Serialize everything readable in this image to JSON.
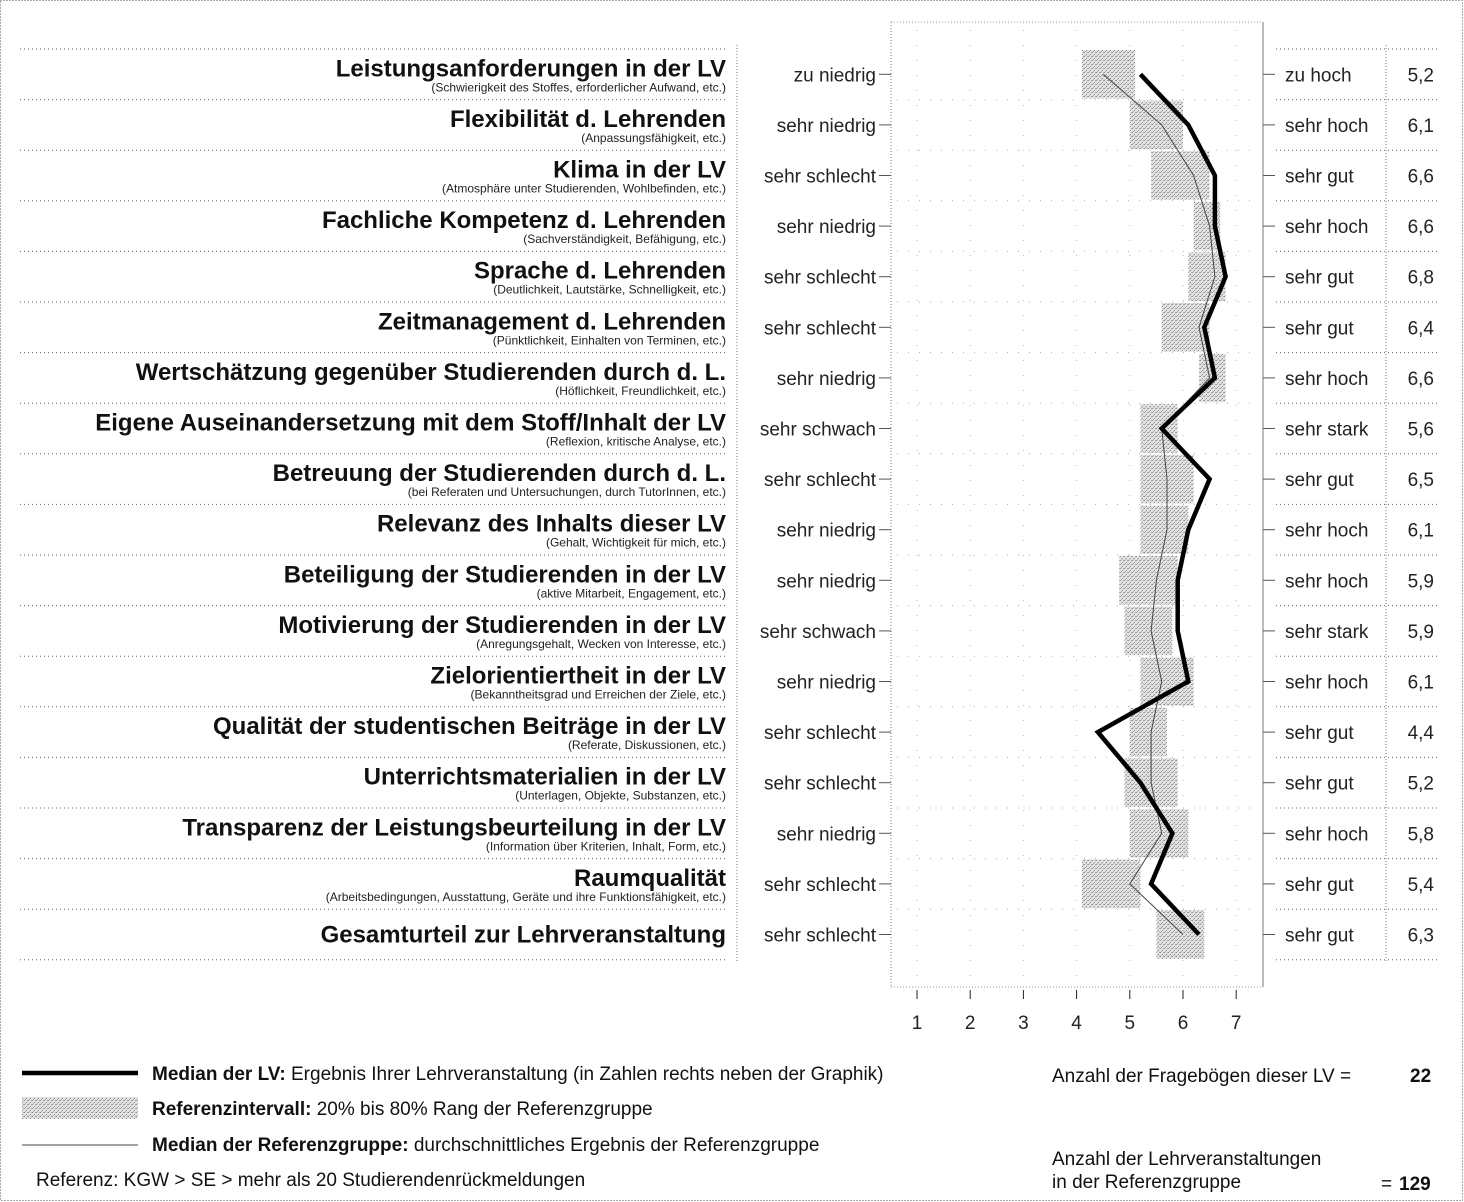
{
  "chart_data": {
    "type": "line",
    "orientation": "horizontal",
    "x_ticks": [
      1,
      2,
      3,
      4,
      5,
      6,
      7
    ],
    "xlim": [
      0.5,
      7.5
    ],
    "items": [
      {
        "title": "Leistungsanforderungen in der LV",
        "subtitle": "(Schwierigkeit des Stoffes, erforderlicher Aufwand, etc.)",
        "left_anchor": "zu niedrig",
        "right_anchor": "zu hoch",
        "median": 5.2,
        "median_label": "5,2",
        "ref_low": 4.1,
        "ref_high": 5.1,
        "ref_median": 4.5
      },
      {
        "title": "Flexibilität d. Lehrenden",
        "subtitle": "(Anpassungsfähigkeit, etc.)",
        "left_anchor": "sehr niedrig",
        "right_anchor": "sehr hoch",
        "median": 6.1,
        "median_label": "6,1",
        "ref_low": 5.0,
        "ref_high": 6.0,
        "ref_median": 5.6
      },
      {
        "title": "Klima in der LV",
        "subtitle": "(Atmosphäre unter Studierenden, Wohlbefinden, etc.)",
        "left_anchor": "sehr schlecht",
        "right_anchor": "sehr gut",
        "median": 6.6,
        "median_label": "6,6",
        "ref_low": 5.4,
        "ref_high": 6.5,
        "ref_median": 6.2
      },
      {
        "title": "Fachliche Kompetenz d. Lehrenden",
        "subtitle": "(Sachverständigkeit, Befähigung, etc.)",
        "left_anchor": "sehr niedrig",
        "right_anchor": "sehr hoch",
        "median": 6.6,
        "median_label": "6,6",
        "ref_low": 6.2,
        "ref_high": 6.7,
        "ref_median": 6.5
      },
      {
        "title": "Sprache d. Lehrenden",
        "subtitle": "(Deutlichkeit, Lautstärke, Schnelligkeit, etc.)",
        "left_anchor": "sehr schlecht",
        "right_anchor": "sehr gut",
        "median": 6.8,
        "median_label": "6,8",
        "ref_low": 6.1,
        "ref_high": 6.8,
        "ref_median": 6.6
      },
      {
        "title": "Zeitmanagement d. Lehrenden",
        "subtitle": "(Pünktlichkeit, Einhalten von Terminen, etc.)",
        "left_anchor": "sehr schlecht",
        "right_anchor": "sehr gut",
        "median": 6.4,
        "median_label": "6,4",
        "ref_low": 5.6,
        "ref_high": 6.5,
        "ref_median": 6.3
      },
      {
        "title": "Wertschätzung gegenüber Studierenden durch d. L.",
        "subtitle": "(Höflichkeit, Freundlichkeit, etc.)",
        "left_anchor": "sehr niedrig",
        "right_anchor": "sehr hoch",
        "median": 6.6,
        "median_label": "6,6",
        "ref_low": 6.3,
        "ref_high": 6.8,
        "ref_median": 6.5
      },
      {
        "title": "Eigene Auseinandersetzung mit dem Stoff/Inhalt der LV",
        "subtitle": "(Reflexion, kritische Analyse, etc.)",
        "left_anchor": "sehr schwach",
        "right_anchor": "sehr stark",
        "median": 5.6,
        "median_label": "5,6",
        "ref_low": 5.2,
        "ref_high": 5.9,
        "ref_median": 5.6
      },
      {
        "title": "Betreuung der Studierenden durch d. L.",
        "subtitle": "(bei Referaten und Untersuchungen, durch TutorInnen, etc.)",
        "left_anchor": "sehr schlecht",
        "right_anchor": "sehr gut",
        "median": 6.5,
        "median_label": "6,5",
        "ref_low": 5.2,
        "ref_high": 6.2,
        "ref_median": 5.7
      },
      {
        "title": "Relevanz des Inhalts dieser LV",
        "subtitle": "(Gehalt, Wichtigkeit für mich, etc.)",
        "left_anchor": "sehr niedrig",
        "right_anchor": "sehr hoch",
        "median": 6.1,
        "median_label": "6,1",
        "ref_low": 5.2,
        "ref_high": 6.1,
        "ref_median": 5.7
      },
      {
        "title": "Beteiligung der Studierenden in der LV",
        "subtitle": "(aktive Mitarbeit, Engagement, etc.)",
        "left_anchor": "sehr niedrig",
        "right_anchor": "sehr hoch",
        "median": 5.9,
        "median_label": "5,9",
        "ref_low": 4.8,
        "ref_high": 5.9,
        "ref_median": 5.5
      },
      {
        "title": "Motivierung der Studierenden in der LV",
        "subtitle": "(Anregungsgehalt, Wecken von Interesse, etc.)",
        "left_anchor": "sehr schwach",
        "right_anchor": "sehr stark",
        "median": 5.9,
        "median_label": "5,9",
        "ref_low": 4.9,
        "ref_high": 5.8,
        "ref_median": 5.4
      },
      {
        "title": "Zielorientiertheit in der LV",
        "subtitle": "(Bekanntheitsgrad und Erreichen der Ziele, etc.)",
        "left_anchor": "sehr niedrig",
        "right_anchor": "sehr hoch",
        "median": 6.1,
        "median_label": "6,1",
        "ref_low": 5.2,
        "ref_high": 6.2,
        "ref_median": 5.6
      },
      {
        "title": "Qualität der studentischen Beiträge in der LV",
        "subtitle": "(Referate, Diskussionen, etc.)",
        "left_anchor": "sehr schlecht",
        "right_anchor": "sehr gut",
        "median": 4.4,
        "median_label": "4,4",
        "ref_low": 5.0,
        "ref_high": 5.7,
        "ref_median": 5.4
      },
      {
        "title": "Unterrichtsmaterialien in der LV",
        "subtitle": "(Unterlagen, Objekte, Substanzen, etc.)",
        "left_anchor": "sehr schlecht",
        "right_anchor": "sehr gut",
        "median": 5.2,
        "median_label": "5,2",
        "ref_low": 4.9,
        "ref_high": 5.9,
        "ref_median": 5.4
      },
      {
        "title": "Transparenz der Leistungsbeurteilung in der LV",
        "subtitle": "(Information über Kriterien, Inhalt, Form, etc.)",
        "left_anchor": "sehr niedrig",
        "right_anchor": "sehr hoch",
        "median": 5.8,
        "median_label": "5,8",
        "ref_low": 5.0,
        "ref_high": 6.1,
        "ref_median": 5.6
      },
      {
        "title": "Raumqualität",
        "subtitle": "(Arbeitsbedingungen, Ausstattung, Geräte und ihre Funktionsfähigkeit, etc.)",
        "left_anchor": "sehr schlecht",
        "right_anchor": "sehr gut",
        "median": 5.4,
        "median_label": "5,4",
        "ref_low": 4.1,
        "ref_high": 5.2,
        "ref_median": 5.0
      },
      {
        "title": "Gesamturteil zur Lehrveranstaltung",
        "subtitle": "",
        "left_anchor": "sehr schlecht",
        "right_anchor": "sehr gut",
        "median": 6.3,
        "median_label": "6,3",
        "ref_low": 5.5,
        "ref_high": 6.4,
        "ref_median": 6.0
      }
    ]
  },
  "legend": {
    "median_lv_bold": "Median der LV:",
    "median_lv_text": " Ergebnis Ihrer Lehrveranstaltung (in Zahlen rechts neben der Graphik)",
    "ref_interval_bold": "Referenzintervall:",
    "ref_interval_text": " 20% bis 80% Rang der Referenzgruppe",
    "ref_median_bold": "Median der Referenzgruppe:",
    "ref_median_text": " durchschnittliches Ergebnis der Referenzgruppe",
    "reference": "Referenz: KGW > SE > mehr als 20 Studierendenrückmeldungen"
  },
  "counts": {
    "questionnaires_label": "Anzahl der Fragebögen dieser LV =",
    "questionnaires_value": "22",
    "courses_label_line1": "Anzahl der Lehrveranstaltungen",
    "courses_label_line2": "in der Referenzgruppe",
    "courses_eq": "=",
    "courses_value": "129"
  }
}
